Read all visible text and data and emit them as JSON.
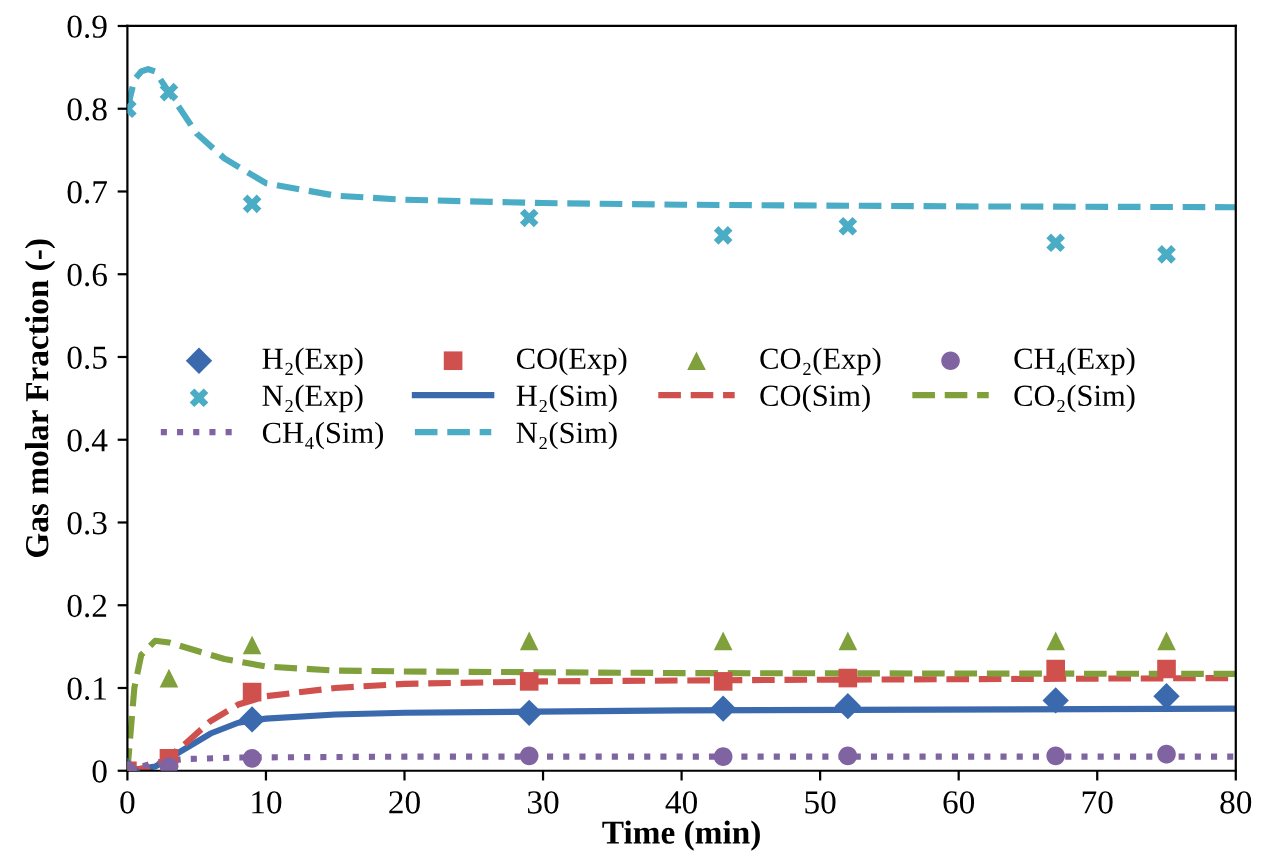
{
  "chart_data": {
    "type": "line",
    "xlabel": "Time (min)",
    "ylabel": "Gas molar Fraction (-)",
    "xlim": [
      0,
      80
    ],
    "ylim": [
      0,
      0.9
    ],
    "xticks": [
      0,
      10,
      20,
      30,
      40,
      50,
      60,
      70,
      80
    ],
    "yticks": [
      0,
      0.1,
      0.2,
      0.3,
      0.4,
      0.5,
      0.6,
      0.7,
      0.8,
      0.9
    ],
    "grid": false,
    "legend": "center",
    "x": [
      0,
      3,
      9,
      29,
      43,
      52,
      67,
      75
    ],
    "series": [
      {
        "name": "H₂(Exp)",
        "type": "scatter",
        "marker": "diamond",
        "color": "#3a6aad",
        "values": [
          0,
          null,
          0.062,
          0.07,
          0.075,
          0.078,
          0.085,
          0.09
        ]
      },
      {
        "name": "CO(Exp)",
        "type": "scatter",
        "marker": "square",
        "color": "#d0504d",
        "values": [
          0,
          0.015,
          0.095,
          0.108,
          0.108,
          0.112,
          0.123,
          0.123
        ]
      },
      {
        "name": "CO₂(Exp)",
        "type": "scatter",
        "marker": "triangle",
        "color": "#7fa03b",
        "values": [
          null,
          0.112,
          0.152,
          0.157,
          0.157,
          0.157,
          0.157,
          0.157
        ]
      },
      {
        "name": "CH₄(Exp)",
        "type": "scatter",
        "marker": "circle",
        "color": "#8064a2",
        "values": [
          0,
          0.005,
          0.015,
          0.018,
          0.017,
          0.018,
          0.018,
          0.02
        ]
      },
      {
        "name": "N₂(Exp)",
        "type": "scatter",
        "marker": "cross",
        "color": "#4bacc6",
        "values": [
          0.8,
          0.82,
          0.685,
          0.668,
          0.647,
          0.658,
          0.638,
          0.624
        ]
      },
      {
        "name": "H₂(Sim)",
        "line_style": "solid",
        "color": "#3a6aad",
        "x": [
          0,
          2,
          4,
          6,
          8,
          10,
          15,
          20,
          40,
          80
        ],
        "values": [
          0,
          0.005,
          0.025,
          0.045,
          0.058,
          0.063,
          0.068,
          0.07,
          0.073,
          0.075
        ]
      },
      {
        "name": "CO(Sim)",
        "line_style": "dashed",
        "color": "#d0504d",
        "x": [
          0,
          2,
          4,
          6,
          8,
          10,
          15,
          20,
          30,
          50,
          80
        ],
        "values": [
          0,
          0.005,
          0.03,
          0.06,
          0.08,
          0.09,
          0.1,
          0.105,
          0.108,
          0.11,
          0.112
        ]
      },
      {
        "name": "CO₂(Sim)",
        "line_style": "dashed",
        "color": "#7fa03b",
        "x": [
          0,
          0.5,
          1,
          2,
          3,
          5,
          7,
          10,
          15,
          20,
          40,
          80
        ],
        "values": [
          0,
          0.1,
          0.14,
          0.157,
          0.155,
          0.145,
          0.135,
          0.126,
          0.121,
          0.12,
          0.118,
          0.117
        ]
      },
      {
        "name": "CH₄(Sim)",
        "line_style": "dotted",
        "color": "#8064a2",
        "x": [
          0,
          2,
          4,
          8,
          20,
          80
        ],
        "values": [
          0,
          0.01,
          0.014,
          0.016,
          0.017,
          0.017
        ]
      },
      {
        "name": "N₂(Sim)",
        "line_style": "dashed",
        "color": "#4bacc6",
        "x": [
          0,
          0.5,
          1,
          1.5,
          2,
          3,
          5,
          7,
          10,
          15,
          20,
          30,
          40,
          60,
          80
        ],
        "values": [
          0.8,
          0.835,
          0.845,
          0.848,
          0.845,
          0.82,
          0.77,
          0.74,
          0.71,
          0.695,
          0.69,
          0.686,
          0.684,
          0.682,
          0.681
        ]
      }
    ]
  }
}
